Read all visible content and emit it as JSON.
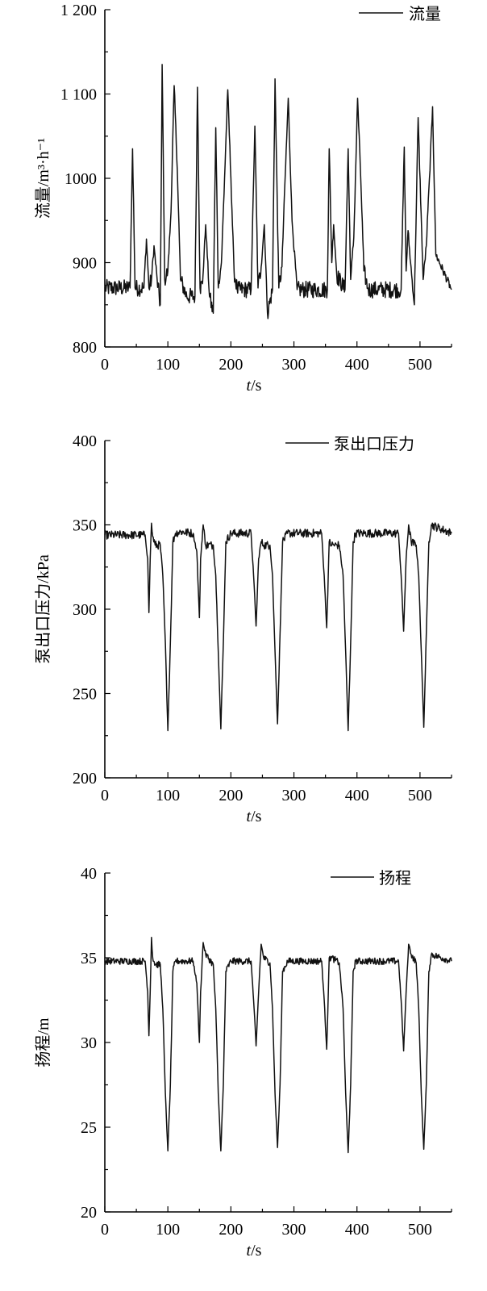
{
  "figure": {
    "colors": {
      "line": "#111111",
      "axis": "#000000",
      "background": "#ffffff"
    }
  },
  "chart_data": [
    {
      "type": "line",
      "ylabel": "流量/m³·h⁻¹",
      "xlabel_italic": "t",
      "xlabel_unit": "/s",
      "xlim": [
        0,
        550
      ],
      "ylim": [
        800,
        1200
      ],
      "xticks": [
        0,
        100,
        200,
        300,
        400,
        500
      ],
      "yticks": [
        800,
        900,
        1000,
        1100,
        1200
      ],
      "ytick_labels": [
        "800",
        "900",
        "1000",
        "1 100",
        "1 200"
      ],
      "legend": "top-right",
      "series": [
        {
          "name": "流量",
          "baseline": 868,
          "noise": 10,
          "x": [
            0,
            40,
            44,
            48,
            62,
            66,
            70,
            74,
            78,
            83,
            88,
            91,
            95,
            100,
            105,
            110,
            115,
            120,
            130,
            143,
            147,
            151,
            155,
            160,
            166,
            172,
            176,
            180,
            185,
            190,
            195,
            200,
            205,
            210,
            232,
            238,
            243,
            248,
            253,
            258,
            266,
            270,
            276,
            281,
            286,
            291,
            297,
            305,
            353,
            356,
            360,
            363,
            368,
            381,
            386,
            390,
            395,
            401,
            406,
            411,
            418,
            470,
            475,
            478,
            481,
            485,
            491,
            497,
            505,
            510,
            515,
            520,
            525,
            550
          ],
          "y": [
            870,
            870,
            1035,
            870,
            870,
            928,
            870,
            880,
            920,
            880,
            850,
            1135,
            880,
            890,
            960,
            1110,
            1010,
            880,
            860,
            860,
            1108,
            870,
            875,
            945,
            860,
            840,
            1060,
            870,
            900,
            1000,
            1105,
            1000,
            890,
            868,
            868,
            1062,
            870,
            895,
            945,
            840,
            868,
            1118,
            870,
            895,
            1000,
            1095,
            950,
            868,
            868,
            1035,
            900,
            945,
            885,
            868,
            1035,
            880,
            930,
            1095,
            1000,
            890,
            868,
            868,
            1037,
            890,
            938,
            900,
            850,
            1072,
            880,
            920,
            1000,
            1085,
            910,
            868
          ]
        }
      ]
    },
    {
      "type": "line",
      "ylabel": "泵出口压力/kPa",
      "xlabel_italic": "t",
      "xlabel_unit": "/s",
      "xlim": [
        0,
        550
      ],
      "ylim": [
        200,
        400
      ],
      "xticks": [
        0,
        100,
        200,
        300,
        400,
        500
      ],
      "yticks": [
        200,
        250,
        300,
        350,
        400
      ],
      "ytick_labels": [
        "200",
        "250",
        "300",
        "350",
        "400"
      ],
      "legend": "top-right",
      "series": [
        {
          "name": "泵出口压力",
          "baseline": 345,
          "noise": 2.5,
          "x": [
            0,
            64,
            68,
            70,
            72,
            74,
            76,
            80,
            88,
            92,
            96,
            100,
            104,
            108,
            112,
            120,
            140,
            146,
            150,
            152,
            156,
            160,
            172,
            176,
            180,
            184,
            188,
            192,
            200,
            232,
            236,
            240,
            244,
            248,
            252,
            262,
            266,
            270,
            274,
            278,
            282,
            290,
            344,
            348,
            352,
            356,
            360,
            372,
            378,
            382,
            386,
            390,
            394,
            398,
            410,
            466,
            470,
            474,
            478,
            482,
            486,
            494,
            498,
            502,
            506,
            510,
            514,
            518,
            550
          ],
          "y": [
            344,
            344,
            330,
            298,
            330,
            351,
            343,
            338,
            338,
            320,
            280,
            228,
            280,
            340,
            345,
            346,
            345,
            334,
            295,
            330,
            350,
            338,
            338,
            320,
            275,
            229,
            280,
            340,
            345,
            345,
            320,
            290,
            330,
            340,
            338,
            338,
            320,
            275,
            232,
            285,
            340,
            345,
            345,
            320,
            289,
            340,
            338,
            338,
            320,
            275,
            228,
            280,
            340,
            345,
            345,
            345,
            320,
            287,
            330,
            350,
            340,
            338,
            320,
            275,
            230,
            285,
            340,
            350,
            345
          ]
        }
      ]
    },
    {
      "type": "line",
      "ylabel": "扬程/m",
      "xlabel_italic": "t",
      "xlabel_unit": "/s",
      "xlim": [
        0,
        550
      ],
      "ylim": [
        20,
        40
      ],
      "xticks": [
        0,
        100,
        200,
        300,
        400,
        500
      ],
      "yticks": [
        20,
        25,
        30,
        35,
        40
      ],
      "ytick_labels": [
        "20",
        "25",
        "30",
        "35",
        "40"
      ],
      "legend": "top-right",
      "series": [
        {
          "name": "扬程",
          "baseline": 34.8,
          "noise": 0.2,
          "x": [
            0,
            64,
            68,
            70,
            72,
            74,
            76,
            80,
            88,
            92,
            96,
            100,
            104,
            108,
            112,
            120,
            140,
            146,
            150,
            152,
            156,
            160,
            172,
            176,
            180,
            184,
            188,
            192,
            200,
            232,
            236,
            240,
            244,
            248,
            252,
            262,
            266,
            270,
            274,
            278,
            282,
            290,
            344,
            348,
            352,
            356,
            360,
            372,
            378,
            382,
            386,
            390,
            394,
            398,
            410,
            466,
            470,
            474,
            478,
            482,
            486,
            494,
            498,
            502,
            506,
            510,
            514,
            518,
            550
          ],
          "y": [
            34.8,
            34.8,
            33,
            30.4,
            33,
            36.2,
            35,
            34.6,
            34.6,
            32,
            27,
            23.6,
            27.5,
            34.2,
            34.8,
            34.8,
            34.8,
            33.5,
            30,
            33,
            35.9,
            35.2,
            34.6,
            32,
            27,
            23.6,
            27.5,
            34.2,
            34.8,
            34.8,
            32.5,
            29.8,
            33,
            35.8,
            35,
            34.7,
            32,
            27,
            23.8,
            27.5,
            34.2,
            34.8,
            34.8,
            32.5,
            29.6,
            35,
            35,
            34.7,
            32,
            27,
            23.5,
            27.5,
            34.2,
            34.8,
            34.8,
            34.8,
            32.5,
            29.5,
            33,
            35.8,
            35.2,
            34.7,
            32,
            27,
            23.7,
            27.5,
            34.2,
            35.2,
            34.8
          ]
        }
      ]
    }
  ]
}
